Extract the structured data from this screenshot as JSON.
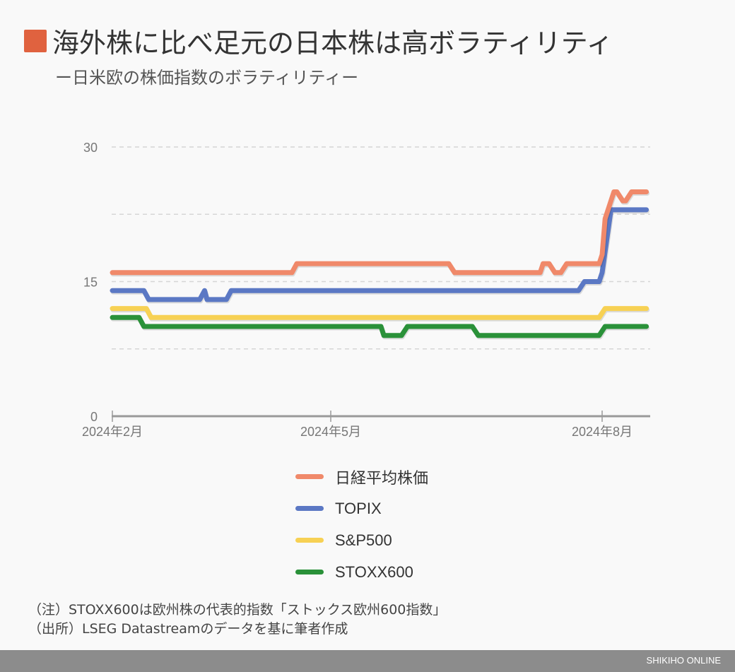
{
  "header": {
    "title": "海外株に比べ足元の日本株は高ボラティリティ",
    "subtitle": "ー日米欧の株価指数のボラティリティー",
    "accent_color": "#e0623f"
  },
  "chart_data": {
    "type": "line",
    "title": "海外株に比べ足元の日本株は高ボラティリティ",
    "subtitle": "ー日米欧の株価指数のボラティリティー",
    "xlabel": "",
    "ylabel": "",
    "ylim": [
      0,
      30
    ],
    "yticks": [
      "0",
      "15",
      "30"
    ],
    "grid_values": [
      7.5,
      15,
      22.5,
      30
    ],
    "grid": true,
    "xticks": [
      {
        "date": "2024-02-01",
        "label": "2024年2月"
      },
      {
        "date": "2024-05-01",
        "label": "2024年5月"
      },
      {
        "date": "2024-08-01",
        "label": "2024年8月"
      }
    ],
    "legend_position": "bottom",
    "series": [
      {
        "name": "日経平均株価",
        "color": "#f0896a",
        "points": [
          [
            "2024-02-01",
            16
          ],
          [
            "2024-04-15",
            16
          ],
          [
            "2024-04-17",
            17
          ],
          [
            "2024-06-10",
            17
          ],
          [
            "2024-06-12",
            16
          ],
          [
            "2024-07-11",
            16
          ],
          [
            "2024-07-12",
            17
          ],
          [
            "2024-07-14",
            17
          ],
          [
            "2024-07-16",
            16
          ],
          [
            "2024-07-18",
            16
          ],
          [
            "2024-07-20",
            17
          ],
          [
            "2024-07-31",
            17
          ],
          [
            "2024-08-01",
            18
          ],
          [
            "2024-08-02",
            22
          ],
          [
            "2024-08-04",
            24
          ],
          [
            "2024-08-05",
            25
          ],
          [
            "2024-08-06",
            25
          ],
          [
            "2024-08-08",
            24
          ],
          [
            "2024-08-09",
            24
          ],
          [
            "2024-08-11",
            25
          ],
          [
            "2024-08-16",
            25
          ]
        ]
      },
      {
        "name": "TOPIX",
        "color": "#5b78c4",
        "points": [
          [
            "2024-02-01",
            14
          ],
          [
            "2024-02-14",
            14
          ],
          [
            "2024-02-16",
            13
          ],
          [
            "2024-03-08",
            13
          ],
          [
            "2024-03-10",
            14
          ],
          [
            "2024-03-11",
            13
          ],
          [
            "2024-03-19",
            13
          ],
          [
            "2024-03-21",
            14
          ],
          [
            "2024-07-24",
            14
          ],
          [
            "2024-07-26",
            15
          ],
          [
            "2024-07-31",
            15
          ],
          [
            "2024-08-01",
            16
          ],
          [
            "2024-08-04",
            23
          ],
          [
            "2024-08-16",
            23
          ]
        ]
      },
      {
        "name": "S&P500",
        "color": "#f7d154",
        "points": [
          [
            "2024-02-01",
            12
          ],
          [
            "2024-02-15",
            12
          ],
          [
            "2024-02-17",
            11
          ],
          [
            "2024-07-31",
            11
          ],
          [
            "2024-08-02",
            12
          ],
          [
            "2024-08-16",
            12
          ]
        ]
      },
      {
        "name": "STOXX600",
        "color": "#2a9139",
        "points": [
          [
            "2024-02-01",
            11
          ],
          [
            "2024-02-12",
            11
          ],
          [
            "2024-02-14",
            10
          ],
          [
            "2024-05-18",
            10
          ],
          [
            "2024-05-19",
            9
          ],
          [
            "2024-05-25",
            9
          ],
          [
            "2024-05-27",
            10
          ],
          [
            "2024-06-18",
            10
          ],
          [
            "2024-06-20",
            9
          ],
          [
            "2024-07-31",
            9
          ],
          [
            "2024-08-02",
            10
          ],
          [
            "2024-08-16",
            10
          ]
        ]
      }
    ]
  },
  "notes": {
    "note": "（注）STOXX600は欧州株の代表的指数「ストックス欧州600指数」",
    "source": "（出所）LSEG Datastreamのデータを基に筆者作成"
  },
  "footer": {
    "brand": "SHIKIHO ONLINE"
  }
}
